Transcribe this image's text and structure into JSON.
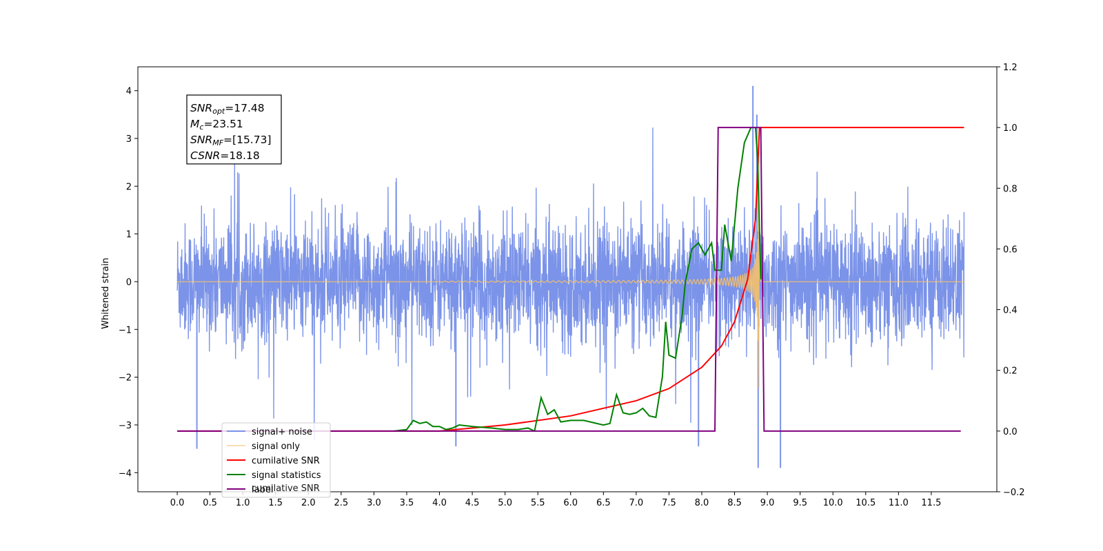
{
  "chart_data": {
    "type": "line",
    "x_unit_ticks": [
      "0.0",
      "0.5",
      "1.0",
      "1.5",
      "2.0",
      "2.5",
      "3.0",
      "3.5",
      "4.0",
      "4.5",
      "5.0",
      "5.5",
      "6.0",
      "6.5",
      "7.0",
      "7.5",
      "8.0",
      "8.5",
      "9.0",
      "9.5",
      "10.0",
      "10.5",
      "11.0",
      "11.5"
    ],
    "x_tick_values": [
      0,
      0.5,
      1,
      1.5,
      2,
      2.5,
      3,
      3.5,
      4,
      4.5,
      5,
      5.5,
      6,
      6.5,
      7,
      7.5,
      8,
      8.5,
      9,
      9.5,
      10,
      10.5,
      11,
      11.5
    ],
    "xlim": [
      -0.6,
      12.5
    ],
    "y_left": {
      "label": "Whitened strain",
      "lim": [
        -4.4,
        4.5
      ],
      "ticks": [
        -4,
        -3,
        -2,
        -1,
        0,
        1,
        2,
        3,
        4
      ],
      "tick_labels": [
        "−4",
        "−3",
        "−2",
        "−1",
        "0",
        "1",
        "2",
        "3",
        "4"
      ]
    },
    "y_right": {
      "lim": [
        -0.2,
        1.2
      ],
      "ticks": [
        -0.2,
        0,
        0.2,
        0.4,
        0.6,
        0.8,
        1.0,
        1.2
      ],
      "tick_labels": [
        "−0.2",
        "0.0",
        "0.2",
        "0.4",
        "0.6",
        "0.8",
        "1.0",
        "1.2"
      ]
    },
    "colors": {
      "signal_noise": "#7b93e8",
      "signal_only": "#f5c16c",
      "cumulative_snr": "#ff0000",
      "signal_statistics": "#008000",
      "label": "#800080"
    },
    "noise_params": {
      "t_start": 0.0,
      "t_end": 12.0,
      "sigma": 0.6,
      "typical_peak": 2.2,
      "spike_max": 4.1,
      "spike_time": 8.8,
      "spike_min": -3.9
    },
    "signal_only": {
      "t_start": 4.0,
      "t_merge": 8.88,
      "peak_amplitude": 3.4
    },
    "cumulative_snr": {
      "axis": "right",
      "points": [
        [
          0.0,
          0.0
        ],
        [
          4.0,
          0.0
        ],
        [
          5.0,
          0.02
        ],
        [
          6.0,
          0.05
        ],
        [
          7.0,
          0.1
        ],
        [
          7.5,
          0.14
        ],
        [
          8.0,
          0.21
        ],
        [
          8.3,
          0.28
        ],
        [
          8.5,
          0.36
        ],
        [
          8.7,
          0.5
        ],
        [
          8.82,
          0.7
        ],
        [
          8.88,
          1.0
        ],
        [
          12.0,
          1.0
        ]
      ]
    },
    "signal_statistics": {
      "axis": "right",
      "points": [
        [
          3.3,
          0.0
        ],
        [
          3.5,
          0.005
        ],
        [
          3.6,
          0.035
        ],
        [
          3.7,
          0.025
        ],
        [
          3.8,
          0.03
        ],
        [
          3.9,
          0.015
        ],
        [
          4.0,
          0.015
        ],
        [
          4.1,
          0.005
        ],
        [
          4.2,
          0.01
        ],
        [
          4.3,
          0.02
        ],
        [
          4.5,
          0.015
        ],
        [
          4.8,
          0.01
        ],
        [
          5.0,
          0.005
        ],
        [
          5.2,
          0.005
        ],
        [
          5.35,
          0.01
        ],
        [
          5.45,
          0.0
        ],
        [
          5.55,
          0.11
        ],
        [
          5.65,
          0.055
        ],
        [
          5.75,
          0.07
        ],
        [
          5.85,
          0.03
        ],
        [
          6.0,
          0.035
        ],
        [
          6.2,
          0.035
        ],
        [
          6.4,
          0.025
        ],
        [
          6.5,
          0.02
        ],
        [
          6.6,
          0.025
        ],
        [
          6.7,
          0.12
        ],
        [
          6.8,
          0.06
        ],
        [
          6.9,
          0.055
        ],
        [
          7.0,
          0.06
        ],
        [
          7.1,
          0.075
        ],
        [
          7.2,
          0.05
        ],
        [
          7.3,
          0.045
        ],
        [
          7.4,
          0.18
        ],
        [
          7.45,
          0.36
        ],
        [
          7.5,
          0.25
        ],
        [
          7.6,
          0.24
        ],
        [
          7.7,
          0.38
        ],
        [
          7.75,
          0.49
        ],
        [
          7.85,
          0.6
        ],
        [
          7.95,
          0.62
        ],
        [
          8.05,
          0.58
        ],
        [
          8.15,
          0.62
        ],
        [
          8.2,
          0.53
        ],
        [
          8.3,
          0.53
        ],
        [
          8.35,
          0.68
        ],
        [
          8.45,
          0.56
        ],
        [
          8.55,
          0.8
        ],
        [
          8.65,
          0.95
        ],
        [
          8.75,
          1.0
        ],
        [
          8.82,
          1.0
        ],
        [
          8.85,
          0.9
        ],
        [
          8.9,
          0.5
        ]
      ]
    },
    "label": {
      "axis": "right",
      "points": [
        [
          0.0,
          0.0
        ],
        [
          8.2,
          0.0
        ],
        [
          8.25,
          1.0
        ],
        [
          8.9,
          1.0
        ],
        [
          8.95,
          0.0
        ],
        [
          11.95,
          0.0
        ]
      ]
    },
    "legend": {
      "placement": "lower-left",
      "items": [
        {
          "key": "signal_noise",
          "text": "signal+ noise"
        },
        {
          "key": "signal_only",
          "text": "signal only"
        },
        {
          "key": "cumulative_snr",
          "text": "cumilative SNR"
        },
        {
          "key": "signal_statistics",
          "text": "signal statistics"
        },
        {
          "key": "label",
          "text": "label"
        }
      ],
      "ghost_text": "cumilative SNR"
    },
    "info_box": {
      "lines": [
        {
          "main": "SNR",
          "sub": "opt",
          "rest": "=17.48"
        },
        {
          "main": "M",
          "sub": "c",
          "rest": "=23.51"
        },
        {
          "main": "SNR",
          "sub": "MF",
          "rest": "=[15.73]"
        },
        {
          "main": "CSNR",
          "sub": "",
          "rest": "=18.18"
        }
      ]
    }
  }
}
